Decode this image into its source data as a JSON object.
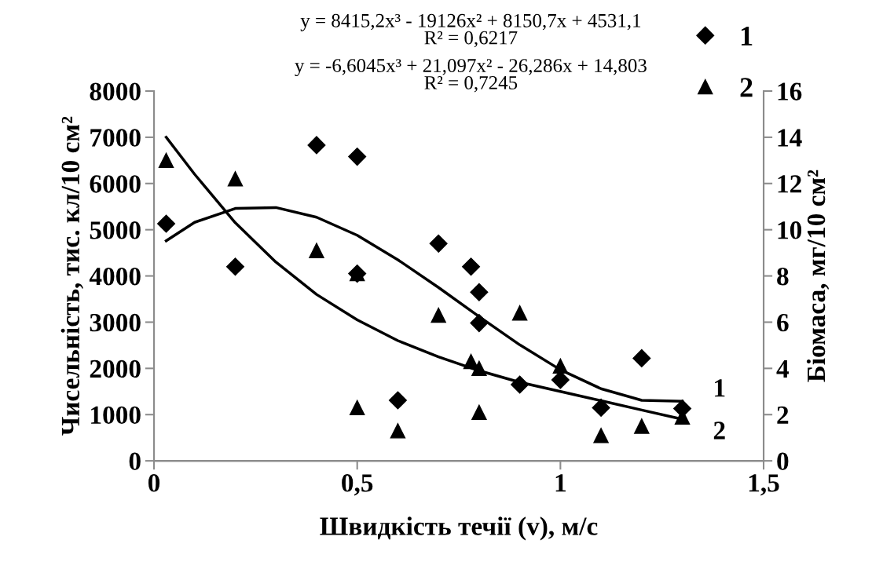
{
  "chart_data": {
    "type": "scatter",
    "xlabel": "Швидкість течії (v), м/с",
    "ylabel": "Чисельність, тис. кл/10 см²",
    "y2label": "Біомаса, мг/10 см²",
    "xlim": [
      0,
      1.5
    ],
    "xticks": [
      0,
      {
        "value": 0.5,
        "label": "0,5"
      },
      1,
      {
        "value": 1.5,
        "label": "1,5"
      }
    ],
    "ylim": [
      0,
      8000
    ],
    "yticks": [
      0,
      1000,
      2000,
      3000,
      4000,
      5000,
      6000,
      7000,
      8000
    ],
    "y2lim": [
      0,
      16
    ],
    "y2ticks": [
      0,
      2,
      4,
      6,
      8,
      10,
      12,
      14,
      16
    ],
    "grid": false,
    "legend": "top right",
    "series": [
      {
        "name": "1",
        "marker": "diamond",
        "color": "#000000",
        "x": [
          0.03,
          0.2,
          0.4,
          0.5,
          0.5,
          0.6,
          0.7,
          0.78,
          0.8,
          0.8,
          0.9,
          1.0,
          1.1,
          1.2,
          1.3
        ],
        "values": [
          5130,
          4200,
          6830,
          6580,
          4050,
          1310,
          4700,
          4200,
          3650,
          2980,
          1650,
          1750,
          1150,
          2220,
          1130
        ]
      },
      {
        "name": "2",
        "marker": "triangle",
        "color": "#000000",
        "axis": "y2",
        "x": [
          0.03,
          0.2,
          0.4,
          0.5,
          0.5,
          0.6,
          0.7,
          0.78,
          0.8,
          0.8,
          0.9,
          1.0,
          1.1,
          1.2,
          1.3
        ],
        "values": [
          13.0,
          12.2,
          9.1,
          8.1,
          2.3,
          1.3,
          6.3,
          4.3,
          4.0,
          2.1,
          6.4,
          4.1,
          1.1,
          1.5,
          1.9
        ]
      },
      {
        "type": "line",
        "marker": "none",
        "line_style": "solid",
        "color": "#000000",
        "x": [
          0.03,
          0.1,
          0.2,
          0.3,
          0.4,
          0.5,
          0.6,
          0.7,
          0.8,
          0.9,
          1.0,
          1.1,
          1.2,
          1.3
        ],
        "values": [
          4760,
          5160,
          5460,
          5480,
          5270,
          4880,
          4350,
          3750,
          3120,
          2510,
          1970,
          1560,
          1310,
          1290
        ]
      },
      {
        "type": "line",
        "marker": "none",
        "line_style": "solid",
        "color": "#000000",
        "axis": "y2",
        "x": [
          0.03,
          0.1,
          0.2,
          0.3,
          0.4,
          0.5,
          0.6,
          0.7,
          0.8,
          0.9,
          1.0,
          1.1,
          1.2,
          1.3
        ],
        "values": [
          14.0,
          12.4,
          10.3,
          8.6,
          7.2,
          6.1,
          5.2,
          4.5,
          3.9,
          3.4,
          3.0,
          2.6,
          2.2,
          1.8
        ]
      }
    ],
    "annotations": [
      "y = 8415,2x³ - 19126x² + 8150,7x + 4531,1\nR² = 0,6217",
      "y = -6,6045x³ + 21,097x² - 26,286x + 14,803\nR² = 0,7245",
      {
        "text": "1",
        "x": 1.3,
        "y": 1290
      },
      {
        "text": "2",
        "x": 1.3,
        "y": 890
      }
    ]
  }
}
